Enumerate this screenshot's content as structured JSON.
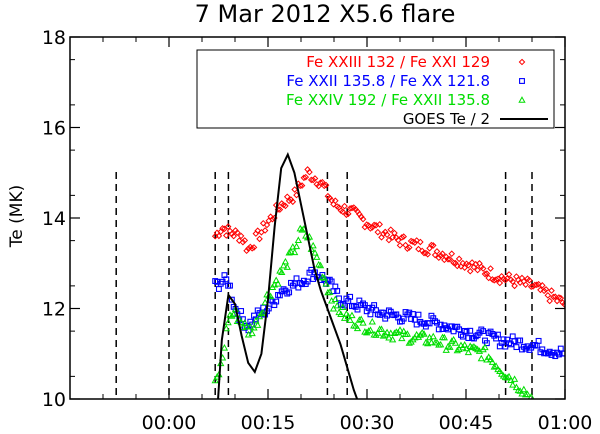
{
  "chart_data": {
    "type": "scatter",
    "title": "7 Mar 2012 X5.6 flare",
    "ylabel": "Te (MK)",
    "xlabel": "",
    "ylim": [
      10,
      18
    ],
    "xlim": [
      "23:45",
      "01:00"
    ],
    "x_tick_labels": [
      "00:00",
      "00:15",
      "00:30",
      "00:45",
      "01:00"
    ],
    "x_tick_minutes": [
      15,
      30,
      45,
      60,
      75
    ],
    "y_ticks": [
      10,
      12,
      14,
      16,
      18
    ],
    "grid": false,
    "legend_placement": "top-right",
    "vertical_markers": [
      "23:52",
      "00:00",
      "00:07",
      "00:09",
      "00:24",
      "00:27",
      "00:51",
      "00:55"
    ],
    "series": [
      {
        "name": "Fe XXIII 132 / Fe XXI 129",
        "marker": "diamond",
        "color": "#ff0000",
        "keypoints": [
          [
            "00:07",
            13.6
          ],
          [
            "00:08",
            13.8
          ],
          [
            "00:09",
            13.7
          ],
          [
            "00:11",
            13.6
          ],
          [
            "00:12",
            13.3
          ],
          [
            "00:13",
            13.5
          ],
          [
            "00:15",
            13.9
          ],
          [
            "00:17",
            14.3
          ],
          [
            "00:19",
            14.5
          ],
          [
            "00:21",
            15.0
          ],
          [
            "00:23",
            14.8
          ],
          [
            "00:25",
            14.3
          ],
          [
            "00:28",
            14.1
          ],
          [
            "00:31",
            13.8
          ],
          [
            "00:35",
            13.5
          ],
          [
            "00:40",
            13.3
          ],
          [
            "00:45",
            13.0
          ],
          [
            "00:50",
            12.7
          ],
          [
            "00:55",
            12.5
          ],
          [
            "01:00",
            12.1
          ]
        ]
      },
      {
        "name": "Fe XXII 135.8 / Fe XX 121.8",
        "marker": "square",
        "color": "#0000ff",
        "keypoints": [
          [
            "00:07",
            12.5
          ],
          [
            "00:08",
            12.6
          ],
          [
            "00:09",
            12.6
          ],
          [
            "00:10",
            12.0
          ],
          [
            "00:11",
            11.8
          ],
          [
            "00:12",
            11.6
          ],
          [
            "00:13",
            11.8
          ],
          [
            "00:15",
            12.0
          ],
          [
            "00:17",
            12.4
          ],
          [
            "00:20",
            12.6
          ],
          [
            "00:22",
            12.8
          ],
          [
            "00:24",
            12.6
          ],
          [
            "00:26",
            12.2
          ],
          [
            "00:28",
            12.1
          ],
          [
            "00:32",
            11.9
          ],
          [
            "00:36",
            11.8
          ],
          [
            "00:40",
            11.7
          ],
          [
            "00:45",
            11.5
          ],
          [
            "00:50",
            11.3
          ],
          [
            "00:55",
            11.2
          ],
          [
            "01:00",
            11.0
          ]
        ]
      },
      {
        "name": "Fe XXIV 192 / Fe XXII 135.8",
        "marker": "triangle",
        "color": "#00dd00",
        "keypoints": [
          [
            "00:07",
            10.3
          ],
          [
            "00:08",
            10.8
          ],
          [
            "00:09",
            11.8
          ],
          [
            "00:10",
            11.9
          ],
          [
            "00:11",
            11.7
          ],
          [
            "00:12",
            11.5
          ],
          [
            "00:13",
            11.6
          ],
          [
            "00:15",
            12.3
          ],
          [
            "00:17",
            12.8
          ],
          [
            "00:19",
            13.3
          ],
          [
            "00:20",
            13.7
          ],
          [
            "00:21",
            13.6
          ],
          [
            "00:23",
            12.9
          ],
          [
            "00:25",
            12.1
          ],
          [
            "00:27",
            11.8
          ],
          [
            "00:30",
            11.6
          ],
          [
            "00:35",
            11.4
          ],
          [
            "00:40",
            11.3
          ],
          [
            "00:45",
            11.1
          ],
          [
            "00:48",
            11.0
          ],
          [
            "00:50",
            10.7
          ],
          [
            "00:53",
            10.3
          ],
          [
            "00:55",
            10.0
          ]
        ]
      },
      {
        "name": "GOES Te / 2",
        "marker": "line",
        "color": "#000000",
        "points": [
          [
            "00:07",
            9.0
          ],
          [
            "00:08",
            11.3
          ],
          [
            "00:09",
            12.3
          ],
          [
            "00:10",
            12.1
          ],
          [
            "00:11",
            11.4
          ],
          [
            "00:12",
            10.8
          ],
          [
            "00:13",
            10.6
          ],
          [
            "00:14",
            11.0
          ],
          [
            "00:15",
            12.2
          ],
          [
            "00:16",
            13.8
          ],
          [
            "00:17",
            15.1
          ],
          [
            "00:18",
            15.4
          ],
          [
            "00:19",
            15.0
          ],
          [
            "00:20",
            14.3
          ],
          [
            "00:21",
            13.6
          ],
          [
            "00:22",
            12.9
          ],
          [
            "00:23",
            12.4
          ],
          [
            "00:24",
            12.0
          ],
          [
            "00:25",
            11.6
          ],
          [
            "00:26",
            11.2
          ],
          [
            "00:27",
            10.7
          ],
          [
            "00:28",
            10.2
          ],
          [
            "00:29",
            9.8
          ]
        ]
      }
    ]
  }
}
